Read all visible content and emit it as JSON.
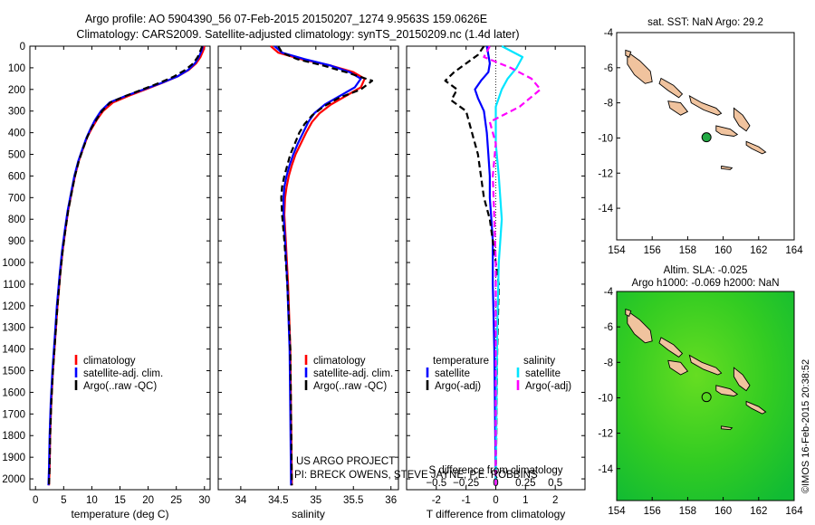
{
  "header": {
    "line1": "Argo profile: AO 5904390_56 07-Feb-2015 20150207_1274 9.9563S 159.0626E",
    "line2": "Climatology: CARS2009. Satellite-adjusted climatology: synTS_20150209.nc (1.4d later)"
  },
  "credits": {
    "line1": "US ARGO PROJECT",
    "line2": "PI: BRECK OWENS, STEVE JAYNE, P.E. ROBBINS"
  },
  "timestamp": "©IMOS 16-Feb-2015 20:38:52",
  "colors": {
    "climatology": "#ff0000",
    "satellite": "#0000ff",
    "argo": "#000000",
    "satellite_diff": "#00e5ff",
    "argo_diff": "#ff00ff",
    "land": "#f0c39e",
    "sla_field": "#33cc22"
  },
  "chart_data": [
    {
      "id": "temperature",
      "type": "line",
      "xlabel": "temperature (deg C)",
      "ylabel": "",
      "xlim": [
        -1,
        31
      ],
      "ylim": [
        2050,
        0
      ],
      "xticks": [
        0,
        5,
        10,
        15,
        20,
        25,
        30
      ],
      "yticks": [
        0,
        100,
        200,
        300,
        400,
        500,
        600,
        700,
        800,
        900,
        1000,
        1100,
        1200,
        1300,
        1400,
        1500,
        1600,
        1700,
        1800,
        1900,
        2000
      ],
      "legend": [
        "climatology",
        "satellite-adj. clim.",
        "Argo(..raw -QC)"
      ],
      "series": [
        {
          "name": "climatology",
          "style": "solid",
          "color": "#ff0000",
          "x": [
            30,
            29.8,
            29.3,
            28.5,
            27.2,
            25.2,
            22.5,
            19.5,
            16.5,
            13.8,
            12,
            10.9,
            10,
            9.2,
            8.5,
            7.7,
            7,
            6.4,
            5.8,
            5.3,
            4.8,
            4.4,
            3.9,
            3.5,
            3.1,
            2.8,
            2.6,
            2.5,
            2.4
          ],
          "y": [
            0,
            20,
            50,
            80,
            110,
            140,
            170,
            200,
            230,
            260,
            300,
            340,
            380,
            420,
            470,
            530,
            600,
            680,
            760,
            850,
            950,
            1050,
            1200,
            1350,
            1500,
            1650,
            1800,
            1950,
            2030
          ]
        },
        {
          "name": "satellite-adj. clim.",
          "style": "solid",
          "color": "#0000ff",
          "x": [
            29.7,
            29.5,
            29,
            28.3,
            27.1,
            25.2,
            22.4,
            19.2,
            16,
            13.2,
            11.6,
            10.6,
            9.8,
            9.1,
            8.4,
            7.6,
            6.9,
            6.3,
            5.7,
            5.2,
            4.7,
            4.3,
            3.8,
            3.4,
            3,
            2.7,
            2.5,
            2.4,
            2.3
          ],
          "y": [
            0,
            20,
            50,
            80,
            110,
            140,
            170,
            200,
            230,
            260,
            300,
            340,
            380,
            420,
            470,
            530,
            600,
            680,
            760,
            850,
            950,
            1050,
            1200,
            1350,
            1500,
            1650,
            1800,
            1950,
            2030
          ]
        },
        {
          "name": "Argo(..raw -QC)",
          "style": "dashed",
          "color": "#000000",
          "x": [
            29.6,
            29.3,
            28.8,
            28,
            26.6,
            24.6,
            22,
            19,
            16,
            13.3,
            11.8,
            10.8,
            9.9,
            9.2,
            8.5,
            7.7,
            7,
            6.4,
            5.8,
            5.3,
            4.8,
            4.4,
            3.9,
            3.5,
            3.1,
            2.8,
            2.6,
            2.5,
            2.4
          ],
          "y": [
            0,
            20,
            50,
            80,
            110,
            140,
            170,
            200,
            230,
            260,
            300,
            340,
            380,
            420,
            470,
            530,
            600,
            680,
            760,
            850,
            950,
            1050,
            1200,
            1350,
            1500,
            1650,
            1800,
            1950,
            2030
          ]
        }
      ]
    },
    {
      "id": "salinity",
      "type": "line",
      "xlabel": "salinity",
      "ylabel": "",
      "xlim": [
        33.7,
        36.1
      ],
      "ylim": [
        2050,
        0
      ],
      "xticks": [
        34,
        34.5,
        35,
        35.5,
        36
      ],
      "xticklabels": [
        "34",
        "34.5",
        "35",
        "35.5",
        "36"
      ],
      "legend": [
        "climatology",
        "satellite-adj. clim.",
        "Argo(..raw -QC)"
      ],
      "series": [
        {
          "name": "climatology",
          "style": "solid",
          "color": "#ff0000",
          "x": [
            34.4,
            34.5,
            34.8,
            35.2,
            35.5,
            35.65,
            35.6,
            35.4,
            35.2,
            35.05,
            34.95,
            34.87,
            34.8,
            34.73,
            34.68,
            34.64,
            34.61,
            34.59,
            34.58,
            34.6,
            34.63,
            34.66,
            34.67,
            34.68
          ],
          "y": [
            0,
            30,
            60,
            90,
            120,
            150,
            190,
            230,
            270,
            310,
            350,
            400,
            450,
            500,
            550,
            600,
            650,
            700,
            780,
            900,
            1100,
            1400,
            1700,
            2030
          ]
        },
        {
          "name": "satellite-adj. clim.",
          "style": "solid",
          "color": "#0000ff",
          "x": [
            34.45,
            34.55,
            34.85,
            35.2,
            35.45,
            35.6,
            35.52,
            35.32,
            35.12,
            34.98,
            34.9,
            34.83,
            34.76,
            34.7,
            34.65,
            34.61,
            34.58,
            34.57,
            34.57,
            34.59,
            34.62,
            34.65,
            34.66,
            34.67
          ],
          "y": [
            0,
            30,
            60,
            90,
            120,
            150,
            190,
            230,
            270,
            310,
            350,
            400,
            450,
            500,
            550,
            600,
            650,
            700,
            780,
            900,
            1100,
            1400,
            1700,
            2030
          ]
        },
        {
          "name": "Argo(..raw -QC)",
          "style": "dashed",
          "color": "#000000",
          "x": [
            34.5,
            34.55,
            34.75,
            35.1,
            35.4,
            35.75,
            35.6,
            35.3,
            35.1,
            34.95,
            34.85,
            34.78,
            34.72,
            34.66,
            34.62,
            34.58,
            34.55,
            34.54,
            34.55,
            34.58,
            34.62,
            34.66,
            34.67,
            34.68
          ],
          "y": [
            0,
            30,
            60,
            90,
            120,
            160,
            200,
            240,
            280,
            320,
            360,
            400,
            450,
            500,
            550,
            600,
            650,
            700,
            780,
            900,
            1100,
            1400,
            1700,
            2030
          ]
        }
      ]
    },
    {
      "id": "differences",
      "type": "line",
      "xlabel": "T difference from climatology",
      "xlabel_top": "S difference from climatology",
      "xlim": [
        -3,
        3
      ],
      "ylim": [
        2050,
        0
      ],
      "xticks": [
        -2,
        -1,
        0,
        1,
        2
      ],
      "xticks_salinity": [
        -0.5,
        -0.25,
        0,
        0.25,
        0.5
      ],
      "xticklabels_salinity": [
        "−0.5",
        "−0.25",
        "0",
        "0.25",
        "0.5"
      ],
      "legend_temperature_title": "temperature",
      "legend_salinity_title": "salinity",
      "legend_temperature": [
        "satellite",
        "Argo(-adj)"
      ],
      "legend_salinity": [
        "satellite",
        "Argo(-adj)"
      ],
      "series": [
        {
          "name": "temperature satellite",
          "style": "solid",
          "color": "#0000ff",
          "x": [
            -0.3,
            -0.25,
            -0.2,
            -0.25,
            -0.5,
            -0.7,
            -0.6,
            -0.4,
            -0.3,
            -0.25,
            -0.2,
            -0.2,
            -0.15,
            -0.1,
            -0.1,
            -0.05,
            0
          ],
          "y": [
            0,
            40,
            80,
            120,
            160,
            200,
            240,
            300,
            400,
            500,
            600,
            700,
            800,
            900,
            1100,
            1400,
            2030
          ]
        },
        {
          "name": "temperature Argo(-adj)",
          "style": "dashed",
          "color": "#000000",
          "x": [
            -0.4,
            -0.6,
            -1,
            -1.4,
            -1.7,
            -1.3,
            -1.5,
            -1,
            -0.8,
            -0.6,
            -0.5,
            -0.4,
            -0.2,
            -0.1,
            0.1,
            0.05,
            0
          ],
          "y": [
            0,
            40,
            80,
            120,
            160,
            200,
            250,
            300,
            400,
            500,
            600,
            700,
            800,
            900,
            1100,
            1400,
            2030
          ]
        },
        {
          "name": "salinity satellite",
          "style": "solid",
          "color": "#00e5ff",
          "x": [
            0.2,
            0.9,
            0.7,
            0.4,
            0.2,
            0,
            0,
            0,
            0.1,
            0.2,
            0.1,
            0.05,
            0
          ],
          "y": [
            0,
            50,
            100,
            150,
            200,
            280,
            350,
            450,
            600,
            800,
            1000,
            1300,
            2030
          ]
        },
        {
          "name": "salinity Argo(-adj)",
          "style": "dashed",
          "color": "#ff00ff",
          "x": [
            -0.2,
            -0.4,
            0.5,
            1.2,
            1.5,
            0.8,
            -0.2,
            0,
            -0.1,
            -0.05,
            0,
            0,
            0
          ],
          "y": [
            0,
            50,
            100,
            150,
            200,
            280,
            350,
            450,
            600,
            800,
            1000,
            1300,
            2030
          ]
        }
      ]
    },
    {
      "id": "map_sst",
      "type": "scatter",
      "title": "sat. SST: NaN Argo: 29.2",
      "xlim": [
        154,
        164
      ],
      "ylim": [
        -15.8,
        -4
      ],
      "xticks": [
        154,
        156,
        158,
        160,
        162,
        164
      ],
      "yticks": [
        -4,
        -6,
        -8,
        -10,
        -12,
        -14
      ],
      "yticklabels": [
        "-4",
        "-6",
        "-8",
        "-10",
        "-12",
        "-14"
      ],
      "points": [
        {
          "lon": 159.06,
          "lat": -9.96,
          "marker": "filled-circle",
          "color": "#22aa44"
        }
      ]
    },
    {
      "id": "map_sla",
      "type": "heatmap",
      "title_line1": "Altim. SLA: -0.025",
      "title_line2": "Argo h1000: -0.069 h2000: NaN",
      "xlim": [
        154,
        164
      ],
      "ylim": [
        -15.8,
        -4
      ],
      "xticks": [
        154,
        156,
        158,
        160,
        162,
        164
      ],
      "yticks": [
        -4,
        -6,
        -8,
        -10,
        -12,
        -14
      ],
      "yticklabels": [
        "-4",
        "-6",
        "-8",
        "-10",
        "-12",
        "-14"
      ],
      "points": [
        {
          "lon": 159.06,
          "lat": -9.96,
          "marker": "open-circle",
          "color": "#000000"
        }
      ]
    }
  ],
  "islands": [
    {
      "name": "Bougainville",
      "lonlat": [
        [
          154.6,
          -5.1
        ],
        [
          155.3,
          -5.6
        ],
        [
          155.9,
          -6.2
        ],
        [
          156.0,
          -6.8
        ],
        [
          155.6,
          -6.9
        ],
        [
          155.0,
          -6.4
        ],
        [
          154.6,
          -5.8
        ]
      ]
    },
    {
      "name": "Choiseul",
      "lonlat": [
        [
          156.5,
          -6.6
        ],
        [
          157.2,
          -7.0
        ],
        [
          157.7,
          -7.5
        ],
        [
          157.5,
          -7.7
        ],
        [
          156.9,
          -7.3
        ],
        [
          156.4,
          -6.9
        ]
      ]
    },
    {
      "name": "New Georgia",
      "lonlat": [
        [
          156.9,
          -7.9
        ],
        [
          157.6,
          -8.0
        ],
        [
          158.0,
          -8.5
        ],
        [
          157.6,
          -8.7
        ],
        [
          157.0,
          -8.3
        ]
      ]
    },
    {
      "name": "Santa Isabel",
      "lonlat": [
        [
          158.1,
          -7.6
        ],
        [
          158.8,
          -8.0
        ],
        [
          159.6,
          -8.3
        ],
        [
          159.9,
          -8.6
        ],
        [
          159.7,
          -8.7
        ],
        [
          158.9,
          -8.4
        ],
        [
          158.2,
          -8.0
        ]
      ]
    },
    {
      "name": "Guadalcanal",
      "lonlat": [
        [
          159.6,
          -9.3
        ],
        [
          160.4,
          -9.5
        ],
        [
          160.8,
          -9.8
        ],
        [
          160.6,
          -9.9
        ],
        [
          159.9,
          -9.8
        ],
        [
          159.6,
          -9.6
        ]
      ]
    },
    {
      "name": "Malaita",
      "lonlat": [
        [
          160.6,
          -8.3
        ],
        [
          161.1,
          -8.7
        ],
        [
          161.5,
          -9.3
        ],
        [
          161.3,
          -9.6
        ],
        [
          160.9,
          -9.3
        ],
        [
          160.6,
          -8.8
        ]
      ]
    },
    {
      "name": "Makira",
      "lonlat": [
        [
          161.3,
          -10.2
        ],
        [
          162.0,
          -10.5
        ],
        [
          162.4,
          -10.8
        ],
        [
          162.2,
          -10.9
        ],
        [
          161.6,
          -10.6
        ],
        [
          161.3,
          -10.4
        ]
      ]
    },
    {
      "name": "Rennell",
      "lonlat": [
        [
          159.9,
          -11.6
        ],
        [
          160.5,
          -11.7
        ],
        [
          160.4,
          -11.8
        ],
        [
          159.9,
          -11.75
        ]
      ]
    },
    {
      "name": "Buka",
      "lonlat": [
        [
          154.5,
          -5.0
        ],
        [
          154.8,
          -5.1
        ],
        [
          154.7,
          -5.4
        ],
        [
          154.5,
          -5.3
        ]
      ]
    }
  ]
}
